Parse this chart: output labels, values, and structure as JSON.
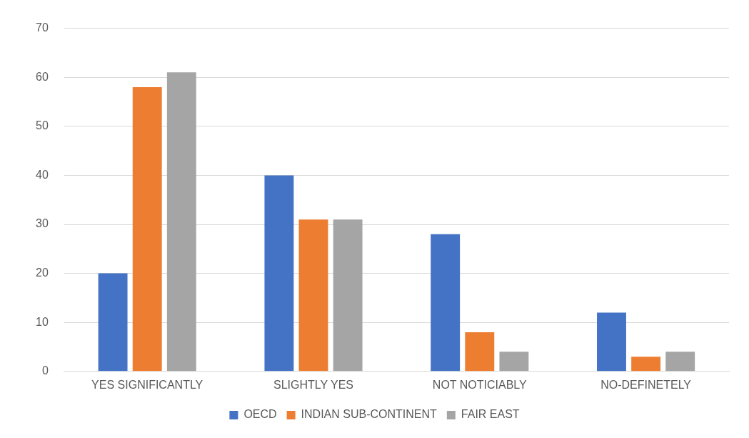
{
  "chart_data": {
    "type": "bar",
    "categories": [
      "YES SIGNIFICANTLY",
      "SLIGHTLY YES",
      "NOT NOTICIABLY",
      "NO-DEFINETELY"
    ],
    "series": [
      {
        "name": "OECD",
        "color": "#4472c4",
        "values": [
          20,
          40,
          28,
          12
        ]
      },
      {
        "name": "INDIAN SUB-CONTINENT",
        "color": "#ed7d31",
        "values": [
          58,
          31,
          8,
          3
        ]
      },
      {
        "name": "FAIR EAST",
        "color": "#a5a5a5",
        "values": [
          61,
          31,
          4,
          4
        ]
      }
    ],
    "ylim": [
      0,
      70
    ],
    "yticks": [
      0,
      10,
      20,
      30,
      40,
      50,
      60,
      70
    ],
    "grid": "y",
    "legend": "bottom"
  }
}
